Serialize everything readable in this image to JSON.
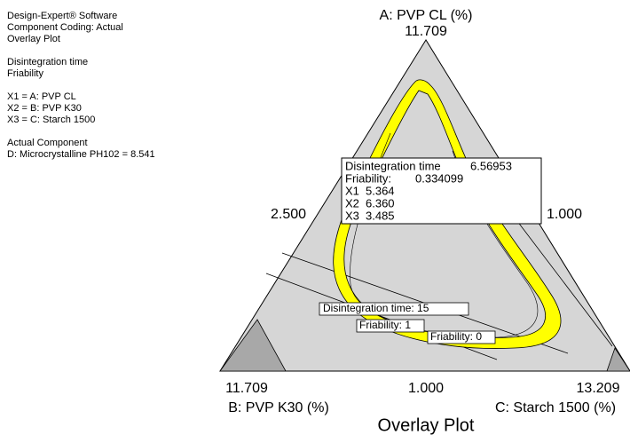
{
  "chart_data": {
    "type": "ternary",
    "title": "Overlay Plot",
    "info": [
      "Design-Expert® Software",
      "Component Coding: Actual",
      "Overlay Plot",
      "Disintegration time",
      "Friability",
      "X1 = A: PVP CL",
      "X2 = B: PVP K30",
      "X3 = C: Starch 1500",
      "Actual Component",
      "D: Microcrystalline PH102 = 8.541"
    ],
    "axes": {
      "a": {
        "label": "A: PVP CL (%)",
        "max": "11.709",
        "min": "1.000"
      },
      "b": {
        "label": "B: PVP K30 (%)",
        "max": "11.709",
        "min": "1.000"
      },
      "c": {
        "label": "C: Starch 1500 (%)",
        "max": "13.209",
        "min": "2.500"
      }
    },
    "tooltip": [
      {
        "label": "Disintegration time",
        "value": "6.56953"
      },
      {
        "label": "Friability:",
        "value": "0.334099"
      },
      {
        "label": "X1",
        "value": "5.364"
      },
      {
        "label": "X2",
        "value": "6.360"
      },
      {
        "label": "X3",
        "value": "3.485"
      }
    ],
    "contour_labels": [
      "Disintegration time: 15",
      "Friability: 1",
      "Friability: 0"
    ]
  }
}
